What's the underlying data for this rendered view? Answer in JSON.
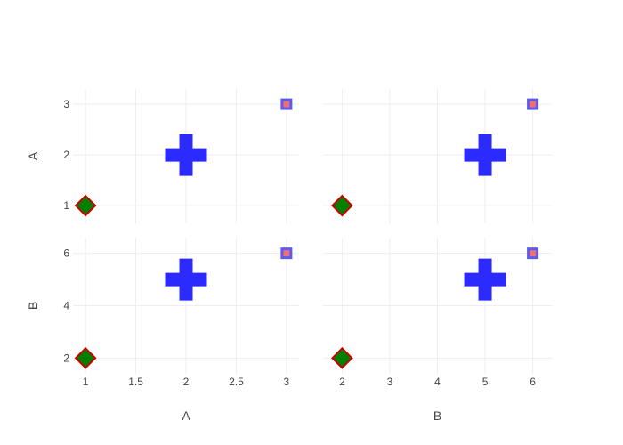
{
  "chart_data": {
    "type": "scatter",
    "subtype": "scatter-matrix",
    "title": "",
    "dimensions": [
      "A",
      "B"
    ],
    "grid": true,
    "legend": "none",
    "columns": {
      "A": {
        "label": "A",
        "range": [
          0.875,
          3.125
        ],
        "ticks": [
          1,
          1.5,
          2,
          2.5,
          3
        ],
        "tick_labels": [
          "1",
          "1.5",
          "2",
          "2.5",
          "3"
        ]
      },
      "B": {
        "label": "B",
        "range": [
          1.6,
          6.4
        ],
        "ticks": [
          2,
          3,
          4,
          5,
          6
        ],
        "tick_labels": [
          "2",
          "3",
          "4",
          "5",
          "6"
        ]
      }
    },
    "rows": {
      "A": {
        "label": "A",
        "range": [
          0.65,
          3.3
        ],
        "ticks": [
          1,
          2,
          3
        ],
        "tick_labels": [
          "1",
          "2",
          "3"
        ]
      },
      "B": {
        "label": "B",
        "range": [
          1.4,
          6.6
        ],
        "ticks": [
          2,
          4,
          6
        ],
        "tick_labels": [
          "2",
          "4",
          "6"
        ]
      }
    },
    "points": [
      {
        "A": 1,
        "B": 2,
        "symbol": "diamond",
        "fill": "#008000",
        "stroke": "#cc0000"
      },
      {
        "A": 2,
        "B": 5,
        "symbol": "cross",
        "fill": "#2b2bff",
        "stroke": "#2b2bff"
      },
      {
        "A": 3,
        "B": 6,
        "symbol": "square",
        "fill": "#ee6e73",
        "stroke": "#5b5bf0"
      }
    ]
  }
}
